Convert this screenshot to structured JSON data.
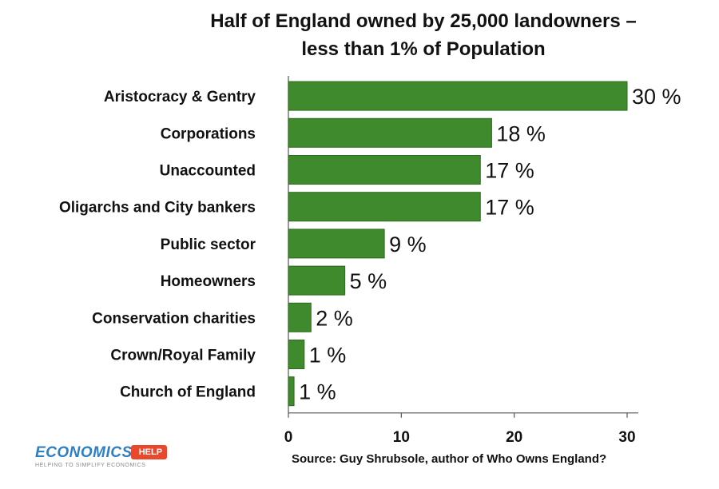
{
  "chart_data": {
    "type": "bar",
    "orientation": "horizontal",
    "title": "Half of England owned by 25,000 landowners –",
    "subtitle": "less than 1% of Population",
    "categories": [
      "Aristocracy & Gentry",
      "Corporations",
      "Unaccounted",
      "Oligarchs and City bankers",
      "Public sector",
      "Homeowners",
      "Conservation charities",
      "Crown/Royal Family",
      "Church of England"
    ],
    "values": [
      30,
      18,
      17,
      17,
      8.5,
      5,
      2,
      1.4,
      0.5
    ],
    "value_labels": [
      "30 %",
      "18 %",
      "17 %",
      "17 %",
      "9 %",
      "5 %",
      "2 %",
      "1 %",
      "1 %"
    ],
    "xlim": [
      0,
      30
    ],
    "xticks": [
      "0",
      "10",
      "20",
      "30"
    ],
    "grid": false,
    "colors": {
      "bar": "#3f8a2c"
    }
  },
  "footer": {
    "source": "Source: Guy Shrubsole, author of Who Owns England?",
    "logo_text": "ECONOMICS",
    "logo_badge": "HELP",
    "logo_tagline": "HELPING TO SIMPLIFY ECONOMICS"
  }
}
